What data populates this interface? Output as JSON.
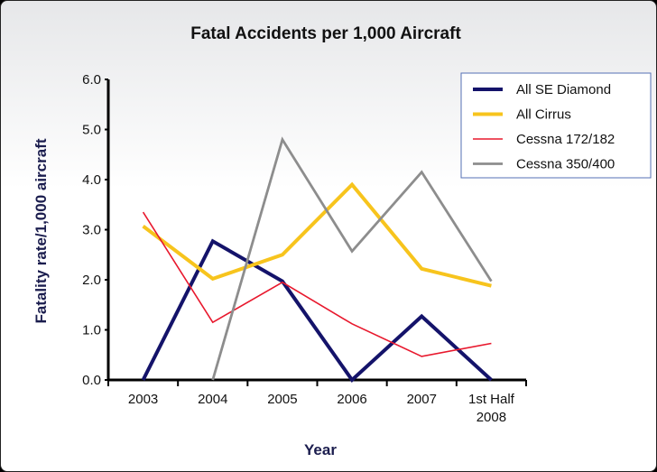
{
  "chart_data": {
    "type": "line",
    "title": "Fatal Accidents per 1,000 Aircraft",
    "xlabel": "Year",
    "ylabel": "Fatality rate/1,000 aircraft",
    "categories": [
      "2003",
      "2004",
      "2005",
      "2006",
      "2007",
      "1st Half 2008"
    ],
    "ylim": [
      0,
      6
    ],
    "yticks": [
      "0.0",
      "1.0",
      "2.0",
      "3.0",
      "4.0",
      "5.0",
      "6.0"
    ],
    "grid": false,
    "legend_position": "top-right",
    "series": [
      {
        "name": "All SE Diamond",
        "color": "#14136a",
        "values": [
          0,
          2.77,
          1.97,
          0,
          1.27,
          0
        ]
      },
      {
        "name": "All Cirrus",
        "color": "#f7c41d",
        "values": [
          3.07,
          2.02,
          2.5,
          3.9,
          2.22,
          1.88
        ]
      },
      {
        "name": "Cessna 172/182",
        "color": "#e8182d",
        "values": [
          3.35,
          1.15,
          1.95,
          1.12,
          0.47,
          0.73
        ]
      },
      {
        "name": "Cessna 350/400",
        "color": "#8d8d8d",
        "values": [
          null,
          0,
          4.8,
          2.57,
          4.15,
          1.97
        ]
      }
    ]
  }
}
